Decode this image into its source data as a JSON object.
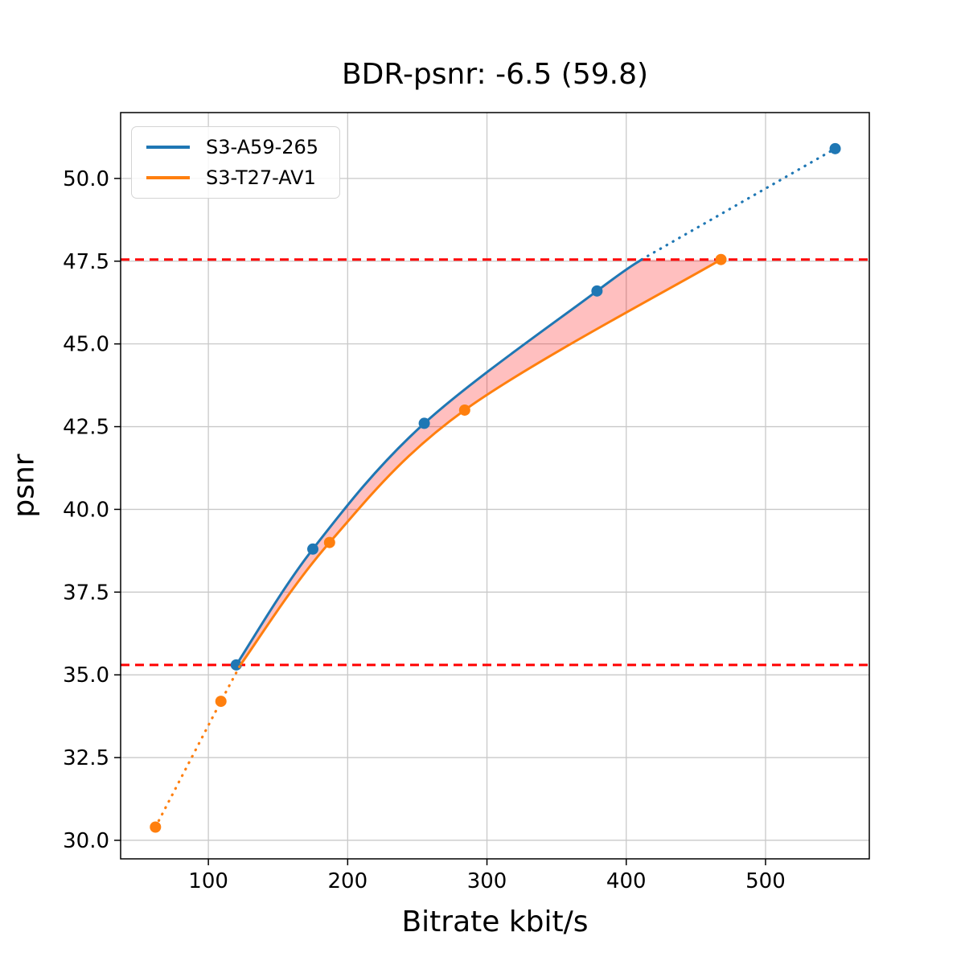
{
  "chart_data": {
    "type": "line",
    "title": "BDR-psnr: -6.5 (59.8)",
    "xlabel": "Bitrate kbit/s",
    "ylabel": "psnr",
    "xlim": [
      37,
      574.5
    ],
    "ylim": [
      29.44,
      51.99
    ],
    "xtick_values": [
      100,
      200,
      300,
      400,
      500
    ],
    "xtick_labels": [
      "100",
      "200",
      "300",
      "400",
      "500"
    ],
    "ytick_values": [
      30.0,
      32.5,
      35.0,
      37.5,
      40.0,
      42.5,
      45.0,
      47.5,
      50.0
    ],
    "ytick_labels": [
      "30.0",
      "32.5",
      "35.0",
      "37.5",
      "40.0",
      "42.5",
      "45.0",
      "47.5",
      "50.0"
    ],
    "grid": true,
    "legend_position": "upper left",
    "series": [
      {
        "name": "S3-A59-265",
        "color": "#1f77b4",
        "points": [
          [
            120,
            35.3
          ],
          [
            175,
            38.8
          ],
          [
            255,
            42.6
          ],
          [
            379,
            46.6
          ],
          [
            550,
            50.9
          ]
        ],
        "solid": [
          [
            120,
            35.3
          ],
          [
            175,
            38.8
          ],
          [
            255,
            42.6
          ],
          [
            379,
            46.6
          ],
          [
            411,
            47.55
          ]
        ],
        "dotted": [
          [
            411,
            47.55
          ],
          [
            550,
            50.9
          ]
        ]
      },
      {
        "name": "S3-T27-AV1",
        "color": "#ff7f0e",
        "points": [
          [
            62,
            30.4
          ],
          [
            109,
            34.2
          ],
          [
            187,
            39.0
          ],
          [
            284,
            43.0
          ],
          [
            468,
            47.55
          ]
        ],
        "solid": [
          [
            123,
            35.3
          ],
          [
            187,
            39.0
          ],
          [
            284,
            43.0
          ],
          [
            468,
            47.55
          ]
        ],
        "dotted": [
          [
            62,
            30.4
          ],
          [
            109,
            34.2
          ],
          [
            123,
            35.3
          ]
        ]
      }
    ],
    "hlines": {
      "color": "#ff0000",
      "style": "dashed",
      "values": [
        35.3,
        47.55
      ]
    },
    "shaded_region": {
      "color": "rgba(255,0,0,0.25)",
      "upper": [
        [
          120,
          35.3
        ],
        [
          175,
          38.8
        ],
        [
          255,
          42.6
        ],
        [
          379,
          46.6
        ],
        [
          411,
          47.55
        ],
        [
          468,
          47.55
        ]
      ],
      "lower": [
        [
          123,
          35.3
        ],
        [
          187,
          39.0
        ],
        [
          284,
          43.0
        ],
        [
          468,
          47.55
        ]
      ]
    }
  }
}
